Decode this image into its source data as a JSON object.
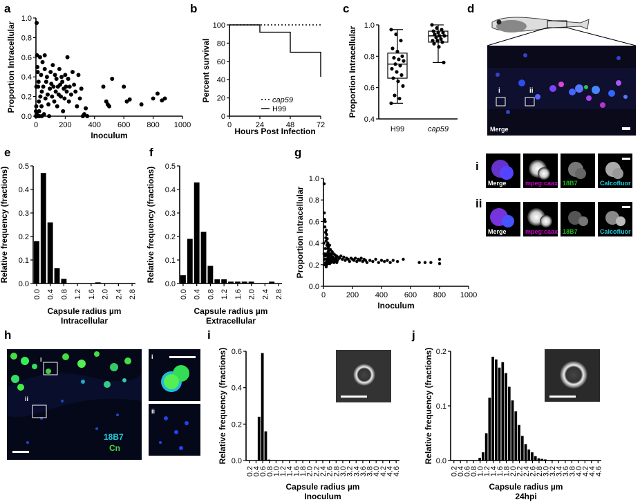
{
  "panel_labels": {
    "a": "a",
    "b": "b",
    "c": "c",
    "d": "d",
    "e": "e",
    "f": "f",
    "g": "g",
    "h": "h",
    "i": "i",
    "j": "j"
  },
  "colors": {
    "magenta": "#cc00cc",
    "green": "#22bb22",
    "cyan": "#22ccdd",
    "bar": "#000000"
  },
  "chart_data": [
    {
      "panel": "a",
      "type": "scatter",
      "xlabel": "Inoculum",
      "ylabel": "Proportion Intracellular",
      "xlim": [
        0,
        1000
      ],
      "ylim": [
        0,
        1.0
      ],
      "xticks": [
        "0",
        "200",
        "400",
        "600",
        "800",
        "1000"
      ],
      "yticks": [
        "0.0",
        "0.2",
        "0.4",
        "0.6",
        "0.8",
        "1.0"
      ],
      "points": [
        [
          5,
          0.95
        ],
        [
          8,
          0.62
        ],
        [
          10,
          0.5
        ],
        [
          12,
          0.45
        ],
        [
          15,
          0.3
        ],
        [
          18,
          0.35
        ],
        [
          20,
          0.15
        ],
        [
          22,
          0.05
        ],
        [
          25,
          0.0
        ],
        [
          28,
          0.6
        ],
        [
          30,
          0.2
        ],
        [
          35,
          0.42
        ],
        [
          38,
          0.1
        ],
        [
          40,
          0.25
        ],
        [
          45,
          0.55
        ],
        [
          50,
          0.3
        ],
        [
          55,
          0.02
        ],
        [
          60,
          0.48
        ],
        [
          65,
          0.18
        ],
        [
          70,
          0.35
        ],
        [
          75,
          0.4
        ],
        [
          80,
          0.22
        ],
        [
          85,
          0.12
        ],
        [
          90,
          0.0
        ],
        [
          95,
          0.28
        ],
        [
          100,
          0.45
        ],
        [
          105,
          0.33
        ],
        [
          110,
          0.2
        ],
        [
          115,
          0.52
        ],
        [
          120,
          0.3
        ],
        [
          125,
          0.15
        ],
        [
          130,
          0.42
        ],
        [
          135,
          0.25
        ],
        [
          140,
          0.38
        ],
        [
          145,
          0.1
        ],
        [
          150,
          0.3
        ],
        [
          155,
          0.22
        ],
        [
          160,
          0.48
        ],
        [
          165,
          0.32
        ],
        [
          170,
          0.2
        ],
        [
          175,
          0.4
        ],
        [
          180,
          0.35
        ],
        [
          185,
          0.05
        ],
        [
          190,
          0.28
        ],
        [
          195,
          0.18
        ],
        [
          200,
          0.42
        ],
        [
          205,
          0.3
        ],
        [
          210,
          0.25
        ],
        [
          215,
          0.6
        ],
        [
          220,
          0.38
        ],
        [
          225,
          0.15
        ],
        [
          230,
          0.3
        ],
        [
          240,
          0.22
        ],
        [
          250,
          0.45
        ],
        [
          260,
          0.32
        ],
        [
          270,
          0.25
        ],
        [
          280,
          0.1
        ],
        [
          290,
          0.42
        ],
        [
          300,
          0.18
        ],
        [
          310,
          0.28
        ],
        [
          320,
          0.0
        ],
        [
          330,
          0.02
        ],
        [
          340,
          0.08
        ],
        [
          350,
          0.0
        ],
        [
          460,
          0.3
        ],
        [
          480,
          0.15
        ],
        [
          490,
          0.12
        ],
        [
          500,
          0.1
        ],
        [
          520,
          0.38
        ],
        [
          600,
          0.3
        ],
        [
          620,
          0.15
        ],
        [
          640,
          0.17
        ],
        [
          720,
          0.12
        ],
        [
          800,
          0.18
        ],
        [
          830,
          0.23
        ],
        [
          860,
          0.16
        ],
        [
          880,
          0.18
        ],
        [
          0,
          0.0
        ],
        [
          0,
          0.05
        ],
        [
          2,
          0.1
        ],
        [
          3,
          0.3
        ],
        [
          40,
          0.0
        ],
        [
          60,
          0.62
        ],
        [
          5,
          0.02
        ],
        [
          12,
          0.0
        ]
      ]
    },
    {
      "panel": "b",
      "type": "line",
      "xlabel": "Hours Post Infection",
      "ylabel": "Percent survival",
      "xlim": [
        0,
        72
      ],
      "ylim": [
        0,
        100
      ],
      "xticks": [
        "0",
        "24",
        "48",
        "72"
      ],
      "yticks": [
        "0",
        "20",
        "40",
        "60",
        "80",
        "100"
      ],
      "series": [
        {
          "name": "cap59",
          "style": "dotted",
          "x": [
            0,
            72
          ],
          "y": [
            100,
            100
          ]
        },
        {
          "name": "H99",
          "style": "solid",
          "x": [
            0,
            24,
            24,
            48,
            48,
            72,
            72
          ],
          "y": [
            100,
            100,
            92,
            92,
            70,
            70,
            43
          ]
        }
      ]
    },
    {
      "panel": "c",
      "type": "box",
      "ylabel": "Proportion Intracellular",
      "ylim": [
        0.4,
        1.0
      ],
      "categories": [
        "H99",
        "cap59"
      ],
      "yticks": [
        "0.4",
        "0.6",
        "0.8",
        "1.0"
      ],
      "boxes": [
        {
          "min": 0.5,
          "q1": 0.66,
          "median": 0.75,
          "q3": 0.82,
          "max": 0.97
        },
        {
          "min": 0.76,
          "q1": 0.89,
          "median": 0.93,
          "q3": 0.96,
          "max": 1.0
        }
      ],
      "points": [
        [
          0.97,
          0.94,
          0.9,
          0.85,
          0.83,
          0.8,
          0.79,
          0.78,
          0.77,
          0.75,
          0.74,
          0.72,
          0.7,
          0.68,
          0.66,
          0.64,
          0.61,
          0.55,
          0.53,
          0.5
        ],
        [
          1.0,
          0.98,
          0.97,
          0.96,
          0.95,
          0.95,
          0.94,
          0.93,
          0.93,
          0.92,
          0.91,
          0.9,
          0.9,
          0.89,
          0.88,
          0.86,
          0.76
        ]
      ]
    },
    {
      "panel": "e",
      "type": "bar",
      "xlabel": "Capsule radius µm",
      "xsublabel": "Intracellular",
      "ylabel": "Relative frequency (fractions)",
      "ylim": [
        0,
        0.5
      ],
      "categories": [
        "0.0",
        "0.2",
        "0.4",
        "0.6",
        "0.8",
        "1.0",
        "1.2",
        "1.4",
        "1.6",
        "1.8",
        "2.0",
        "2.2",
        "2.4",
        "2.6",
        "2.8"
      ],
      "xticks": [
        "0.0",
        "0.4",
        "0.8",
        "1.2",
        "1.6",
        "2.0",
        "2.4",
        "2.8"
      ],
      "yticks": [
        "0.0",
        "0.1",
        "0.2",
        "0.3",
        "0.4",
        "0.5"
      ],
      "values": [
        0.18,
        0.47,
        0.26,
        0.065,
        0.02,
        0.0,
        0.0,
        0.0,
        0.0,
        0.005,
        0.0,
        0.0,
        0.0,
        0.0,
        0.0
      ]
    },
    {
      "panel": "f",
      "type": "bar",
      "xlabel": "Capsule radius µm",
      "xsublabel": "Extracellular",
      "ylabel": "Relative frequency (fractions)",
      "ylim": [
        0,
        0.5
      ],
      "categories": [
        "0.0",
        "0.2",
        "0.4",
        "0.6",
        "0.8",
        "1.0",
        "1.2",
        "1.4",
        "1.6",
        "1.8",
        "2.0",
        "2.2",
        "2.4",
        "2.6",
        "2.8"
      ],
      "xticks": [
        "0.0",
        "0.4",
        "0.8",
        "1.2",
        "1.6",
        "2.0",
        "2.4",
        "2.8"
      ],
      "yticks": [
        "0.0",
        "0.1",
        "0.2",
        "0.3",
        "0.4",
        "0.5"
      ],
      "values": [
        0.035,
        0.19,
        0.43,
        0.22,
        0.075,
        0.018,
        0.018,
        0.008,
        0.008,
        0.008,
        0.008,
        0.0,
        0.0,
        0.008,
        0.0
      ]
    },
    {
      "panel": "g",
      "type": "scatter",
      "xlabel": "Inoculum",
      "ylabel": "Proportion Intracellular",
      "xlim": [
        0,
        1000
      ],
      "ylim": [
        0,
        1.0
      ],
      "xticks": [
        "0",
        "200",
        "400",
        "600",
        "800",
        "1000"
      ],
      "yticks": [
        "0.0",
        "0.2",
        "0.4",
        "0.6",
        "0.8",
        "1.0"
      ],
      "points": [
        [
          5,
          0.95
        ],
        [
          6,
          0.68
        ],
        [
          8,
          0.62
        ],
        [
          10,
          0.55
        ],
        [
          12,
          0.6
        ],
        [
          14,
          0.5
        ],
        [
          16,
          0.45
        ],
        [
          18,
          0.42
        ],
        [
          20,
          0.52
        ],
        [
          22,
          0.48
        ],
        [
          24,
          0.38
        ],
        [
          26,
          0.44
        ],
        [
          28,
          0.35
        ],
        [
          30,
          0.4
        ],
        [
          32,
          0.32
        ],
        [
          34,
          0.36
        ],
        [
          36,
          0.3
        ],
        [
          38,
          0.33
        ],
        [
          40,
          0.28
        ],
        [
          42,
          0.38
        ],
        [
          44,
          0.3
        ],
        [
          46,
          0.26
        ],
        [
          48,
          0.34
        ],
        [
          50,
          0.3
        ],
        [
          55,
          0.28
        ],
        [
          60,
          0.32
        ],
        [
          65,
          0.27
        ],
        [
          70,
          0.3
        ],
        [
          75,
          0.25
        ],
        [
          80,
          0.29
        ],
        [
          85,
          0.26
        ],
        [
          90,
          0.28
        ],
        [
          95,
          0.24
        ],
        [
          100,
          0.27
        ],
        [
          110,
          0.26
        ],
        [
          120,
          0.28
        ],
        [
          130,
          0.25
        ],
        [
          140,
          0.27
        ],
        [
          150,
          0.24
        ],
        [
          160,
          0.26
        ],
        [
          170,
          0.25
        ],
        [
          180,
          0.23
        ],
        [
          190,
          0.26
        ],
        [
          200,
          0.25
        ],
        [
          210,
          0.24
        ],
        [
          220,
          0.26
        ],
        [
          230,
          0.23
        ],
        [
          240,
          0.25
        ],
        [
          250,
          0.24
        ],
        [
          260,
          0.26
        ],
        [
          270,
          0.23
        ],
        [
          280,
          0.25
        ],
        [
          290,
          0.24
        ],
        [
          300,
          0.22
        ],
        [
          320,
          0.24
        ],
        [
          340,
          0.23
        ],
        [
          360,
          0.25
        ],
        [
          380,
          0.22
        ],
        [
          400,
          0.24
        ],
        [
          420,
          0.23
        ],
        [
          440,
          0.24
        ],
        [
          460,
          0.22
        ],
        [
          480,
          0.24
        ],
        [
          510,
          0.23
        ],
        [
          550,
          0.25
        ],
        [
          660,
          0.22
        ],
        [
          700,
          0.22
        ],
        [
          740,
          0.22
        ],
        [
          800,
          0.21
        ],
        [
          800,
          0.25
        ],
        [
          3,
          0.4
        ],
        [
          4,
          0.3
        ],
        [
          7,
          0.25
        ],
        [
          9,
          0.2
        ],
        [
          11,
          0.28
        ],
        [
          13,
          0.35
        ],
        [
          15,
          0.22
        ],
        [
          17,
          0.3
        ],
        [
          19,
          0.18
        ],
        [
          21,
          0.25
        ],
        [
          23,
          0.2
        ],
        [
          25,
          0.29
        ],
        [
          27,
          0.24
        ],
        [
          29,
          0.21
        ],
        [
          31,
          0.27
        ],
        [
          33,
          0.23
        ],
        [
          35,
          0.25
        ],
        [
          37,
          0.22
        ],
        [
          39,
          0.26
        ],
        [
          41,
          0.24
        ],
        [
          43,
          0.21
        ],
        [
          45,
          0.27
        ],
        [
          47,
          0.23
        ],
        [
          49,
          0.25
        ],
        [
          52,
          0.22
        ],
        [
          57,
          0.26
        ],
        [
          62,
          0.23
        ],
        [
          67,
          0.25
        ],
        [
          72,
          0.22
        ],
        [
          77,
          0.24
        ],
        [
          82,
          0.23
        ],
        [
          87,
          0.25
        ],
        [
          92,
          0.22
        ],
        [
          97,
          0.24
        ]
      ]
    },
    {
      "panel": "i",
      "type": "bar",
      "xlabel": "Capsule radius µm",
      "xsublabel": "Inoculum",
      "ylabel": "Relative frequency (fractions)",
      "ylim": [
        0,
        0.6
      ],
      "categories": [
        "0.2",
        "0.4",
        "0.6",
        "0.8",
        "1.0",
        "1.2",
        "1.4",
        "1.6",
        "1.8",
        "2.0",
        "2.2",
        "2.4",
        "2.6",
        "2.8",
        "3.0",
        "3.2",
        "3.4",
        "3.6",
        "3.8",
        "4.0",
        "4.2",
        "4.4",
        "4.6"
      ],
      "xticks": [
        "0.2",
        "0.4",
        "0.6",
        "0.8",
        "1.0",
        "1.2",
        "1.4",
        "1.6",
        "1.8",
        "2.0",
        "2.2",
        "2.4",
        "2.6",
        "2.8",
        "3.0",
        "3.2",
        "3.4",
        "3.6",
        "3.8",
        "4.0",
        "4.2",
        "4.4",
        "4.6"
      ],
      "yticks": [
        "0.0",
        "0.2",
        "0.4",
        "0.6"
      ],
      "values": [
        0.0,
        0.0,
        0.0,
        0.0,
        0.005,
        0.0,
        0.0,
        0.0,
        0.0,
        0.0,
        0.0,
        0.0,
        0.0,
        0.0,
        0.0,
        0.0,
        0.0,
        0.0,
        0.0,
        0.0,
        0.0,
        0.0,
        0.0
      ],
      "fine_values": [
        [
          0.5,
          0.24
        ],
        [
          0.6,
          0.59
        ],
        [
          0.7,
          0.16
        ],
        [
          0.8,
          0.005
        ]
      ]
    },
    {
      "panel": "j",
      "type": "bar",
      "xlabel": "Capsule radius µm",
      "xsublabel": "24hpi",
      "ylabel": "Relative frequency (fractions)",
      "ylim": [
        0,
        0.2
      ],
      "xticks": [
        "0.2",
        "0.4",
        "0.6",
        "0.8",
        "1.0",
        "1.2",
        "1.4",
        "1.6",
        "1.8",
        "2.0",
        "2.2",
        "2.4",
        "2.6",
        "2.8",
        "3.0",
        "3.2",
        "3.4",
        "3.6",
        "3.8",
        "4.0",
        "4.2",
        "4.4",
        "4.6"
      ],
      "yticks": [
        "0.0",
        "0.1",
        "0.2"
      ],
      "bins": [
        [
          1.0,
          0.005
        ],
        [
          1.1,
          0.015
        ],
        [
          1.2,
          0.05
        ],
        [
          1.3,
          0.115
        ],
        [
          1.4,
          0.19
        ],
        [
          1.5,
          0.185
        ],
        [
          1.6,
          0.17
        ],
        [
          1.7,
          0.18
        ],
        [
          1.8,
          0.16
        ],
        [
          1.9,
          0.135
        ],
        [
          2.0,
          0.11
        ],
        [
          2.1,
          0.09
        ],
        [
          2.2,
          0.065
        ],
        [
          2.3,
          0.045
        ],
        [
          2.4,
          0.03
        ],
        [
          2.5,
          0.02
        ],
        [
          2.6,
          0.015
        ],
        [
          2.7,
          0.008
        ],
        [
          2.8,
          0.004
        ],
        [
          2.9,
          0.003
        ],
        [
          3.0,
          0.002
        ],
        [
          3.2,
          0.001
        ]
      ]
    }
  ],
  "microscopy": {
    "d_label": "Merge",
    "d_i": "i",
    "d_ii": "ii",
    "row_i": "i",
    "row_ii": "ii",
    "channels": [
      "Merge",
      "mpeg:caax",
      "18B7",
      "Calcofluor"
    ],
    "h_i": "i",
    "h_ii": "ii",
    "h_18B7": "18B7",
    "h_Cn": "Cn",
    "hi_i": "i",
    "hi_ii": "ii"
  }
}
